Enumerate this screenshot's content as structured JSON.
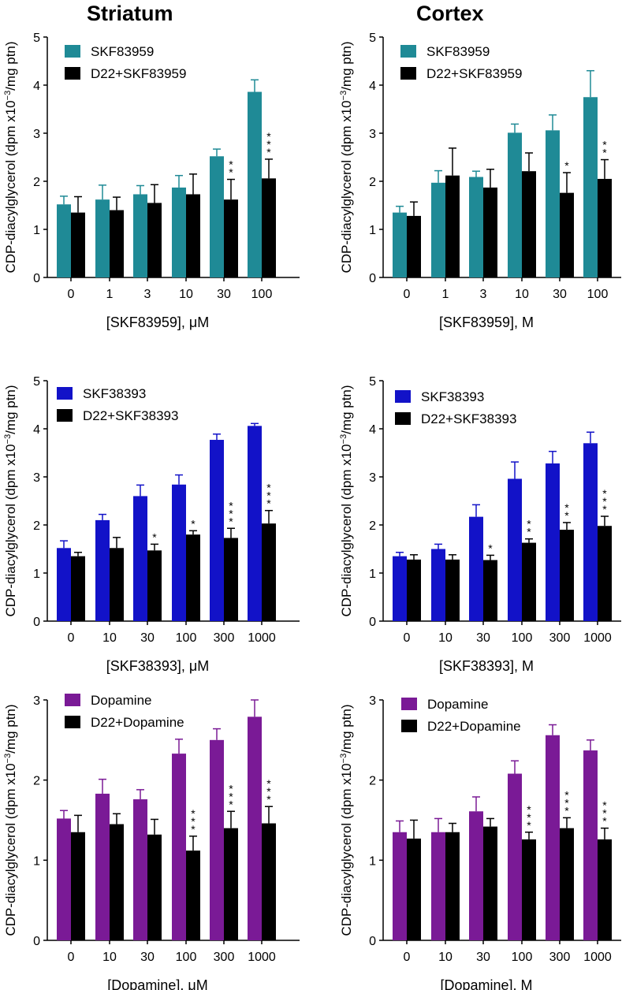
{
  "column_titles": {
    "striatum": "Striatum",
    "cortex": "Cortex"
  },
  "ylabel_prefix": "CDP-diacylglycerol (dpm x10",
  "ylabel_exp": "−3",
  "ylabel_suffix": "/mg ptn)",
  "colors": {
    "teal": "#1f8a96",
    "blue": "#1212c8",
    "purple": "#7a1a96",
    "black": "#000000"
  },
  "chart_data": [
    {
      "id": "striatum-skf83959",
      "type": "bar",
      "color_key": "teal",
      "categories": [
        "0",
        "1",
        "3",
        "10",
        "30",
        "100"
      ],
      "xlabel": "[SKF83959], μM",
      "ylabel": "CDP-diacylglycerol (dpm x10−3/mg ptn)",
      "ylim": [
        0,
        5
      ],
      "yticks": [
        "0",
        "1",
        "2",
        "3",
        "4",
        "5"
      ],
      "series": [
        {
          "name": "SKF83959",
          "values": [
            1.52,
            1.62,
            1.73,
            1.87,
            2.52,
            3.86
          ],
          "errors": [
            0.17,
            0.3,
            0.18,
            0.25,
            0.15,
            0.25
          ]
        },
        {
          "name": "D22+SKF83959",
          "values": [
            1.35,
            1.4,
            1.55,
            1.73,
            1.62,
            2.06
          ],
          "errors": [
            0.33,
            0.27,
            0.38,
            0.42,
            0.42,
            0.4
          ]
        }
      ],
      "annotations": [
        "",
        "",
        "",
        "",
        "**",
        "***"
      ]
    },
    {
      "id": "cortex-skf83959",
      "type": "bar",
      "color_key": "teal",
      "categories": [
        "0",
        "1",
        "3",
        "10",
        "30",
        "100"
      ],
      "xlabel": "[SKF83959],    M",
      "ylabel": "CDP-diacylglycerol (dpm x10−3/mg ptn)",
      "ylim": [
        0,
        5
      ],
      "yticks": [
        "0",
        "1",
        "2",
        "3",
        "4",
        "5"
      ],
      "series": [
        {
          "name": "SKF83959",
          "values": [
            1.35,
            1.97,
            2.09,
            3.01,
            3.06,
            3.75
          ],
          "errors": [
            0.13,
            0.25,
            0.12,
            0.18,
            0.32,
            0.55
          ]
        },
        {
          "name": "D22+SKF83959",
          "values": [
            1.28,
            2.12,
            1.87,
            2.21,
            1.76,
            2.05
          ],
          "errors": [
            0.29,
            0.57,
            0.38,
            0.38,
            0.42,
            0.4
          ]
        }
      ],
      "annotations": [
        "",
        "",
        "",
        "",
        "*",
        "**"
      ]
    },
    {
      "id": "striatum-skf38393",
      "type": "bar",
      "color_key": "blue",
      "categories": [
        "0",
        "10",
        "30",
        "100",
        "300",
        "1000"
      ],
      "xlabel": "[SKF38393], μM",
      "ylabel": "CDP-diacylglycerol (dpm x10−3/mg ptn)",
      "ylim": [
        0,
        5
      ],
      "yticks": [
        "0",
        "1",
        "2",
        "3",
        "4",
        "5"
      ],
      "series": [
        {
          "name": "SKF38393",
          "values": [
            1.52,
            2.1,
            2.6,
            2.84,
            3.77,
            4.06
          ],
          "errors": [
            0.15,
            0.12,
            0.23,
            0.2,
            0.12,
            0.05
          ]
        },
        {
          "name": "D22+SKF38393",
          "values": [
            1.35,
            1.52,
            1.47,
            1.8,
            1.73,
            2.03
          ],
          "errors": [
            0.08,
            0.22,
            0.13,
            0.08,
            0.2,
            0.27
          ]
        }
      ],
      "annotations": [
        "",
        "",
        "*",
        "*",
        "***",
        "***"
      ]
    },
    {
      "id": "cortex-skf38393",
      "type": "bar",
      "color_key": "blue",
      "categories": [
        "0",
        "10",
        "30",
        "100",
        "300",
        "1000"
      ],
      "xlabel": "[SKF38393],    M",
      "ylabel": "CDP-diacylglycerol (dpm x10−3/mg ptn)",
      "ylim": [
        0,
        5
      ],
      "yticks": [
        "0",
        "1",
        "2",
        "3",
        "4",
        "5"
      ],
      "series": [
        {
          "name": "SKF38393",
          "values": [
            1.35,
            1.5,
            2.17,
            2.96,
            3.28,
            3.7
          ],
          "errors": [
            0.08,
            0.1,
            0.25,
            0.35,
            0.25,
            0.23
          ]
        },
        {
          "name": "D22+SKF38393",
          "values": [
            1.28,
            1.28,
            1.27,
            1.63,
            1.9,
            1.98
          ],
          "errors": [
            0.1,
            0.1,
            0.1,
            0.08,
            0.15,
            0.2
          ]
        }
      ],
      "annotations": [
        "",
        "",
        "*",
        "**",
        "**",
        "***"
      ]
    },
    {
      "id": "striatum-dopamine",
      "type": "bar",
      "color_key": "purple",
      "categories": [
        "0",
        "10",
        "30",
        "100",
        "300",
        "1000"
      ],
      "xlabel": "[Dopamine], μM",
      "ylabel": "CDP-diacylglycerol (dpm x10−3/mg ptn)",
      "ylim": [
        0,
        3
      ],
      "yticks": [
        "0",
        "1",
        "2",
        "3"
      ],
      "series": [
        {
          "name": "Dopamine",
          "values": [
            1.52,
            1.83,
            1.76,
            2.33,
            2.5,
            2.79
          ],
          "errors": [
            0.1,
            0.18,
            0.12,
            0.18,
            0.14,
            0.21
          ]
        },
        {
          "name": "D22+Dopamine",
          "values": [
            1.35,
            1.45,
            1.32,
            1.12,
            1.4,
            1.46
          ],
          "errors": [
            0.21,
            0.13,
            0.19,
            0.18,
            0.21,
            0.21
          ]
        }
      ],
      "annotations": [
        "",
        "",
        "",
        "***",
        "***",
        "***"
      ]
    },
    {
      "id": "cortex-dopamine",
      "type": "bar",
      "color_key": "purple",
      "categories": [
        "0",
        "10",
        "30",
        "100",
        "300",
        "1000"
      ],
      "xlabel": "[Dopamine],    M",
      "ylabel": "CDP-diacylglycerol (dpm x10−3/mg ptn)",
      "ylim": [
        0,
        3
      ],
      "yticks": [
        "0",
        "1",
        "2",
        "3"
      ],
      "series": [
        {
          "name": "Dopamine",
          "values": [
            1.35,
            1.35,
            1.61,
            2.08,
            2.56,
            2.37
          ],
          "errors": [
            0.14,
            0.17,
            0.18,
            0.16,
            0.13,
            0.13
          ]
        },
        {
          "name": "D22+Dopamine",
          "values": [
            1.27,
            1.35,
            1.42,
            1.26,
            1.4,
            1.26
          ],
          "errors": [
            0.23,
            0.11,
            0.1,
            0.09,
            0.13,
            0.14
          ]
        }
      ],
      "annotations": [
        "",
        "",
        "",
        "***",
        "***",
        "***"
      ]
    }
  ]
}
